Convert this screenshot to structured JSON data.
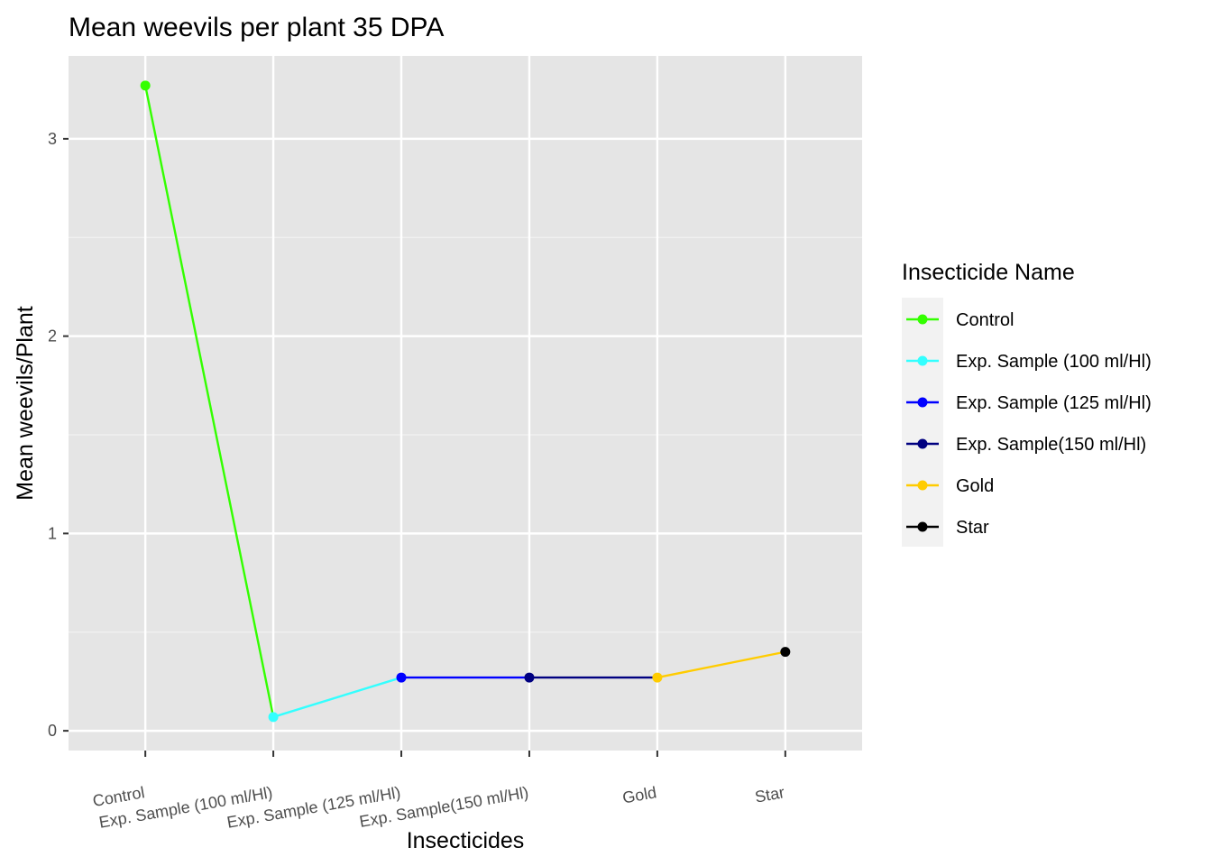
{
  "chart_data": {
    "type": "line",
    "title": "Mean weevils per plant 35 DPA",
    "xlabel": "Insecticides",
    "ylabel": "Mean weevils/Plant",
    "categories": [
      "Control",
      "Exp. Sample (100 ml/Hl)",
      "Exp. Sample (125 ml/Hl)",
      "Exp. Sample(150 ml/Hl)",
      "Gold",
      "Star"
    ],
    "values": [
      3.27,
      0.07,
      0.27,
      0.27,
      0.27,
      0.4
    ],
    "colors": [
      "#33ff00",
      "#33ffff",
      "#0000ff",
      "#000080",
      "#ffcc00",
      "#000000"
    ],
    "yticks": [
      0,
      1,
      2,
      3
    ],
    "ylim": [
      -0.1,
      3.42
    ],
    "grid": true,
    "panel_background": "#e5e5e5",
    "legend": {
      "title": "Insecticide Name",
      "placement": "right",
      "items": [
        "Control",
        "Exp. Sample (100 ml/Hl)",
        "Exp. Sample (125 ml/Hl)",
        "Exp. Sample(150 ml/Hl)",
        "Gold",
        "Star"
      ]
    }
  }
}
